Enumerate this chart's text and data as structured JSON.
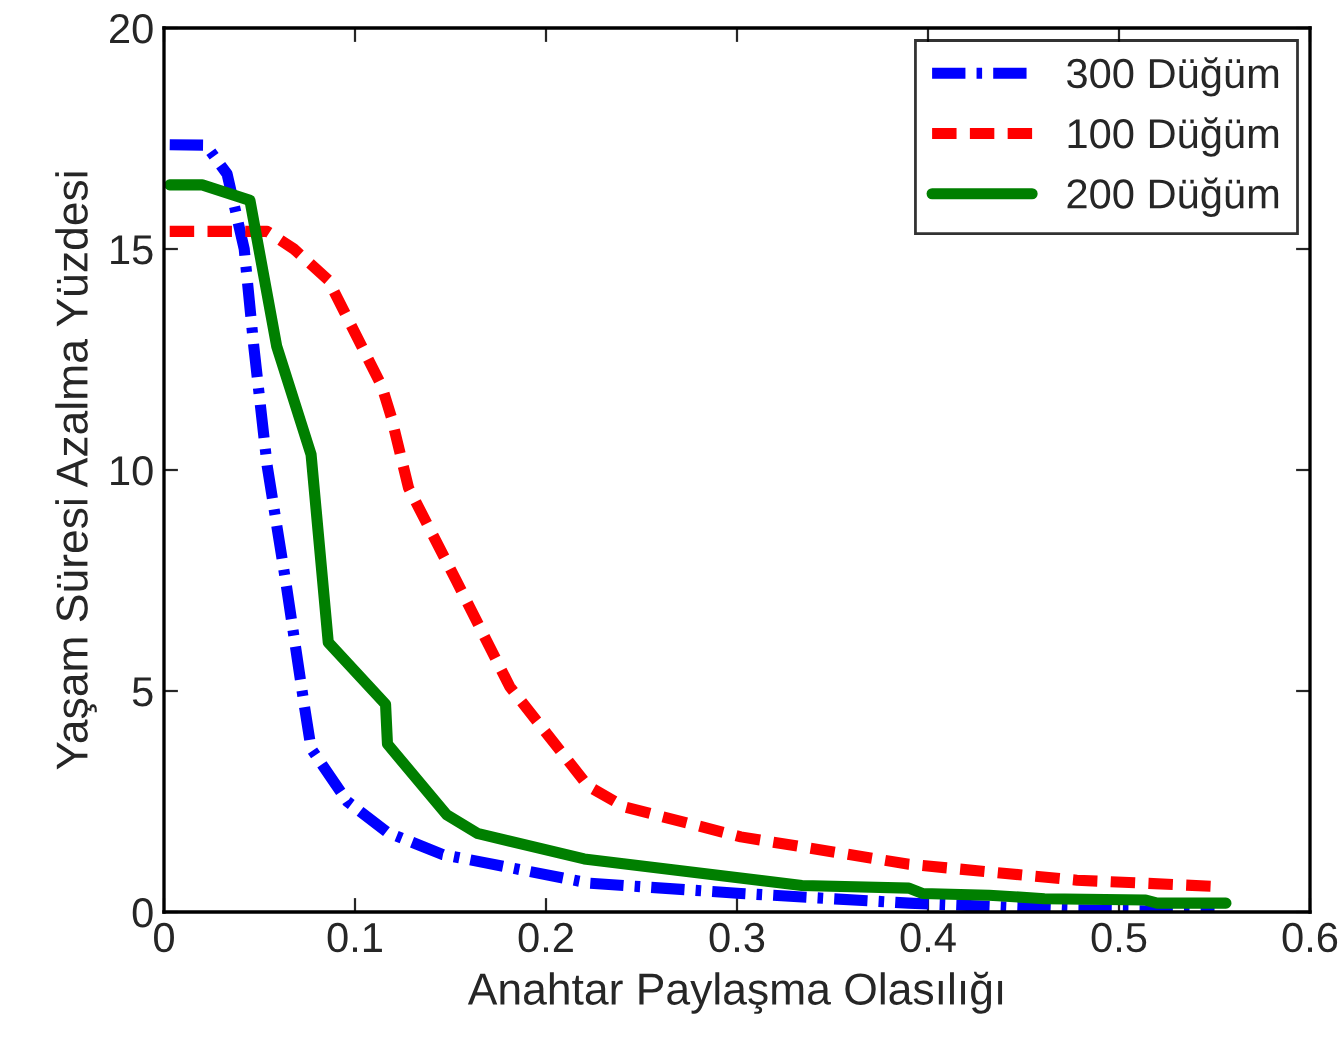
{
  "chart_data": {
    "type": "line",
    "xlabel": "Anahtar Paylaşma Olasılığı",
    "ylabel": "Yaşam Süresi Azalma Yüzdesi",
    "xlim": [
      0,
      0.6
    ],
    "xticks": [
      0,
      0.1,
      0.2,
      0.3,
      0.4,
      0.5,
      0.6
    ],
    "ylim": [
      0,
      20
    ],
    "yticks": [
      0,
      5,
      10,
      15,
      20
    ],
    "grid": false,
    "legend": "top right",
    "series": [
      {
        "name": "300 Düğüm",
        "color": "#0000ff",
        "line_style": "dashdot",
        "x": [
          0.003,
          0.022,
          0.033,
          0.042,
          0.047,
          0.054,
          0.064,
          0.073,
          0.077,
          0.096,
          0.117,
          0.146,
          0.223,
          0.302,
          0.39,
          0.478,
          0.55
        ],
        "values": [
          17.36,
          17.35,
          16.7,
          15.0,
          12.8,
          10.1,
          7.4,
          4.8,
          3.7,
          2.5,
          1.8,
          1.3,
          0.65,
          0.42,
          0.2,
          0.05,
          0.0
        ]
      },
      {
        "name": "100 Düğüm",
        "color": "#ff0000",
        "line_style": "dashed",
        "x": [
          0.003,
          0.054,
          0.068,
          0.086,
          0.114,
          0.119,
          0.128,
          0.153,
          0.181,
          0.222,
          0.241,
          0.302,
          0.39,
          0.478,
          0.55
        ],
        "values": [
          15.4,
          15.4,
          15.0,
          14.3,
          11.9,
          11.2,
          9.6,
          7.5,
          5.1,
          2.85,
          2.38,
          1.7,
          1.08,
          0.72,
          0.58
        ]
      },
      {
        "name": "200 Düğüm",
        "color": "#007f00",
        "line_style": "solid",
        "x": [
          0.003,
          0.02,
          0.045,
          0.059,
          0.077,
          0.086,
          0.116,
          0.117,
          0.148,
          0.164,
          0.22,
          0.334,
          0.39,
          0.397,
          0.432,
          0.461,
          0.514,
          0.52,
          0.556
        ],
        "values": [
          16.45,
          16.45,
          16.1,
          12.8,
          10.35,
          6.1,
          4.7,
          3.8,
          2.2,
          1.78,
          1.2,
          0.6,
          0.54,
          0.42,
          0.38,
          0.3,
          0.27,
          0.2,
          0.2
        ]
      }
    ]
  }
}
